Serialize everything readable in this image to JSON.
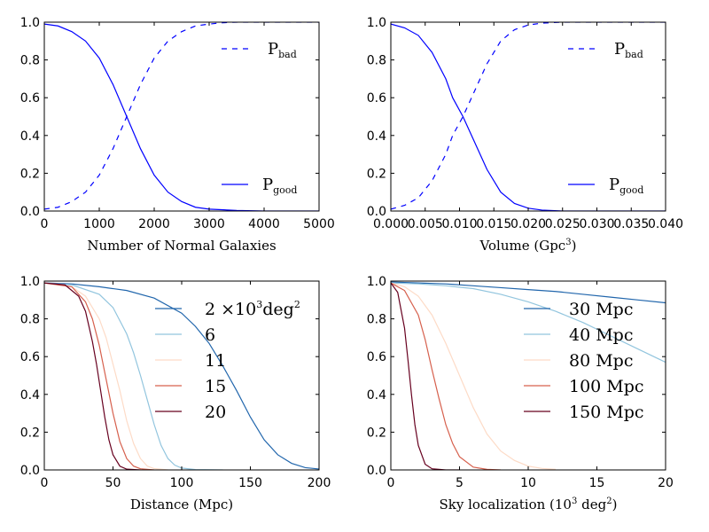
{
  "chart_data": [
    {
      "type": "line",
      "xlabel": "Number of Normal Galaxies",
      "ylabel": "",
      "xlim": [
        0,
        5000
      ],
      "ylim": [
        0,
        1
      ],
      "xticks": [
        "0",
        "1000",
        "2000",
        "3000",
        "4000",
        "5000"
      ],
      "yticks": [
        "0.0",
        "0.2",
        "0.4",
        "0.6",
        "0.8",
        "1.0"
      ],
      "grid": false,
      "legend": "right",
      "series": [
        {
          "name_main": "P",
          "name_sub": "bad",
          "color": "#0000ff",
          "dash": "dashed",
          "x": [
            0,
            250,
            500,
            750,
            1000,
            1250,
            1500,
            1750,
            2000,
            2250,
            2500,
            2750,
            3000,
            3250,
            3500,
            5000
          ],
          "y": [
            0.01,
            0.02,
            0.05,
            0.1,
            0.19,
            0.33,
            0.5,
            0.67,
            0.81,
            0.9,
            0.95,
            0.98,
            0.99,
            0.997,
            1.0,
            1.0
          ]
        },
        {
          "name_main": "P",
          "name_sub": "good",
          "color": "#0000ff",
          "dash": "solid",
          "x": [
            0,
            250,
            500,
            750,
            1000,
            1250,
            1500,
            1750,
            2000,
            2250,
            2500,
            2750,
            3000,
            3500,
            4000,
            5000
          ],
          "y": [
            0.99,
            0.98,
            0.95,
            0.9,
            0.81,
            0.67,
            0.5,
            0.33,
            0.19,
            0.1,
            0.05,
            0.02,
            0.01,
            0.003,
            0.0,
            0.0
          ]
        }
      ]
    },
    {
      "type": "line",
      "xlabel_main": "Volume (Gpc",
      "xlabel_sup": "3",
      "xlabel_tail": ")",
      "ylabel": "",
      "xlim": [
        0,
        0.04
      ],
      "ylim": [
        0,
        1
      ],
      "xticks": [
        "0.000",
        "0.005",
        "0.010",
        "0.015",
        "0.020",
        "0.025",
        "0.030",
        "0.035",
        "0.040"
      ],
      "yticks": [
        "0.0",
        "0.2",
        "0.4",
        "0.6",
        "0.8",
        "1.0"
      ],
      "grid": false,
      "legend": "right",
      "series": [
        {
          "name_main": "P",
          "name_sub": "bad",
          "color": "#0000ff",
          "dash": "dashed",
          "x": [
            0,
            0.002,
            0.004,
            0.006,
            0.008,
            0.009,
            0.0105,
            0.012,
            0.014,
            0.016,
            0.018,
            0.02,
            0.022,
            0.025,
            0.04
          ],
          "y": [
            0.01,
            0.03,
            0.07,
            0.16,
            0.3,
            0.4,
            0.5,
            0.62,
            0.78,
            0.9,
            0.96,
            0.985,
            0.995,
            1.0,
            1.0
          ]
        },
        {
          "name_main": "P",
          "name_sub": "good",
          "color": "#0000ff",
          "dash": "solid",
          "x": [
            0,
            0.002,
            0.004,
            0.006,
            0.008,
            0.009,
            0.0105,
            0.012,
            0.014,
            0.016,
            0.018,
            0.02,
            0.022,
            0.025,
            0.04
          ],
          "y": [
            0.99,
            0.97,
            0.93,
            0.84,
            0.7,
            0.6,
            0.5,
            0.38,
            0.22,
            0.1,
            0.04,
            0.015,
            0.005,
            0.0,
            0.0
          ]
        }
      ]
    },
    {
      "type": "line",
      "xlabel": "Distance (Mpc)",
      "ylabel": "",
      "xlim": [
        0,
        200
      ],
      "ylim": [
        0,
        1
      ],
      "xticks": [
        "0",
        "50",
        "100",
        "150",
        "200"
      ],
      "yticks": [
        "0.0",
        "0.2",
        "0.4",
        "0.6",
        "0.8",
        "1.0"
      ],
      "grid": false,
      "legend": "upper right",
      "legend_first_main": "2 ×10",
      "legend_first_sup": "3",
      "legend_first_tail": "deg",
      "legend_first_sup2": "2",
      "series": [
        {
          "name": "2",
          "color": "#2166ac",
          "x": [
            0,
            20,
            40,
            60,
            80,
            100,
            110,
            120,
            130,
            140,
            150,
            160,
            170,
            180,
            190,
            200
          ],
          "y": [
            0.99,
            0.985,
            0.97,
            0.95,
            0.91,
            0.83,
            0.76,
            0.67,
            0.55,
            0.42,
            0.28,
            0.16,
            0.08,
            0.035,
            0.012,
            0.005
          ]
        },
        {
          "name": "6",
          "color": "#92c5de",
          "x": [
            0,
            20,
            40,
            50,
            60,
            65,
            70,
            75,
            80,
            85,
            90,
            95,
            100,
            110,
            130
          ],
          "y": [
            0.99,
            0.98,
            0.93,
            0.86,
            0.72,
            0.62,
            0.5,
            0.37,
            0.24,
            0.13,
            0.06,
            0.025,
            0.01,
            0.002,
            0.0
          ]
        },
        {
          "name": "11",
          "color": "#fddbc7",
          "x": [
            0,
            20,
            30,
            40,
            45,
            50,
            55,
            60,
            65,
            70,
            75,
            80,
            90
          ],
          "y": [
            0.99,
            0.97,
            0.92,
            0.8,
            0.7,
            0.56,
            0.42,
            0.26,
            0.14,
            0.06,
            0.02,
            0.007,
            0.0
          ]
        },
        {
          "name": "15",
          "color": "#d6604d",
          "x": [
            0,
            20,
            30,
            35,
            40,
            45,
            50,
            55,
            60,
            65,
            70,
            80
          ],
          "y": [
            0.99,
            0.97,
            0.89,
            0.8,
            0.66,
            0.48,
            0.3,
            0.15,
            0.06,
            0.02,
            0.006,
            0.0
          ]
        },
        {
          "name": "20",
          "color": "#67001f",
          "x": [
            0,
            15,
            25,
            30,
            35,
            38,
            41,
            44,
            47,
            50,
            55,
            60,
            70
          ],
          "y": [
            0.99,
            0.98,
            0.92,
            0.84,
            0.68,
            0.56,
            0.42,
            0.28,
            0.16,
            0.08,
            0.02,
            0.004,
            0.0
          ]
        }
      ]
    },
    {
      "type": "line",
      "xlabel_main": "Sky localization (10",
      "xlabel_sup": "3",
      "xlabel_mid": " deg",
      "xlabel_sup2": "2",
      "xlabel_tail": ")",
      "ylabel": "",
      "xlim": [
        0,
        20
      ],
      "ylim": [
        0,
        1
      ],
      "xticks": [
        "0",
        "5",
        "10",
        "15",
        "20"
      ],
      "yticks": [
        "0.0",
        "0.2",
        "0.4",
        "0.6",
        "0.8",
        "1.0"
      ],
      "grid": false,
      "legend": "upper right",
      "series": [
        {
          "name": "30 Mpc",
          "color": "#2166ac",
          "x": [
            0,
            2,
            4,
            6,
            8,
            10,
            12,
            14,
            16,
            18,
            20
          ],
          "y": [
            0.995,
            0.99,
            0.985,
            0.975,
            0.965,
            0.955,
            0.945,
            0.93,
            0.915,
            0.9,
            0.885
          ]
        },
        {
          "name": "40 Mpc",
          "color": "#92c5de",
          "x": [
            0,
            2,
            4,
            6,
            8,
            10,
            12,
            14,
            16,
            18,
            20
          ],
          "y": [
            0.99,
            0.985,
            0.975,
            0.96,
            0.93,
            0.89,
            0.84,
            0.78,
            0.71,
            0.64,
            0.57
          ]
        },
        {
          "name": "80 Mpc",
          "color": "#fddbc7",
          "x": [
            0,
            1,
            2,
            3,
            4,
            5,
            6,
            7,
            8,
            9,
            10,
            11,
            12
          ],
          "y": [
            0.99,
            0.97,
            0.92,
            0.82,
            0.67,
            0.5,
            0.33,
            0.19,
            0.1,
            0.05,
            0.02,
            0.008,
            0.003
          ]
        },
        {
          "name": "100 Mpc",
          "color": "#d6604d",
          "x": [
            0,
            1,
            2,
            2.5,
            3,
            3.5,
            4,
            4.5,
            5,
            6,
            7,
            8
          ],
          "y": [
            0.99,
            0.95,
            0.82,
            0.69,
            0.53,
            0.38,
            0.24,
            0.14,
            0.07,
            0.015,
            0.003,
            0.0
          ]
        },
        {
          "name": "150 Mpc",
          "color": "#67001f",
          "x": [
            0,
            0.5,
            1,
            1.25,
            1.5,
            1.75,
            2,
            2.5,
            3,
            4,
            5
          ],
          "y": [
            0.99,
            0.94,
            0.75,
            0.58,
            0.4,
            0.24,
            0.13,
            0.03,
            0.006,
            0.0,
            0.0
          ]
        }
      ]
    }
  ]
}
